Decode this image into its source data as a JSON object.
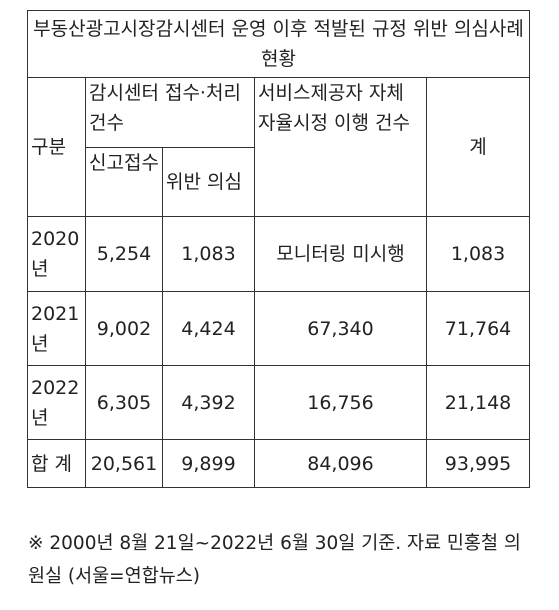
{
  "table": {
    "title": "부동산광고시장감시센터 운영 이후 적발된 규정 위반 의심사례 현황",
    "headers": {
      "category": "구분",
      "center_group": "감시센터 접수·처리 건수",
      "report_received": "신고접수",
      "violation_suspected": "위반 의심",
      "provider": "서비스제공자 자체\n자율시정 이행 건수",
      "total": "계"
    },
    "rows": [
      {
        "year": "2020년",
        "report": "5,254",
        "suspected": "1,083",
        "provider": "모니터링 미시행",
        "total": "1,083"
      },
      {
        "year": "2021년",
        "report": "9,002",
        "suspected": "4,424",
        "provider": "67,340",
        "total": "71,764"
      },
      {
        "year": "2022년",
        "report": "6,305",
        "suspected": "4,392",
        "provider": "16,756",
        "total": "21,148"
      },
      {
        "year": "합 계",
        "report": "20,561",
        "suspected": "9,899",
        "provider": "84,096",
        "total": "93,995"
      }
    ]
  },
  "note": "※ 2000년 8월 21일~2022년 6월 30일 기준. 자료 민홍철 의원실 (서울=연합뉴스)"
}
